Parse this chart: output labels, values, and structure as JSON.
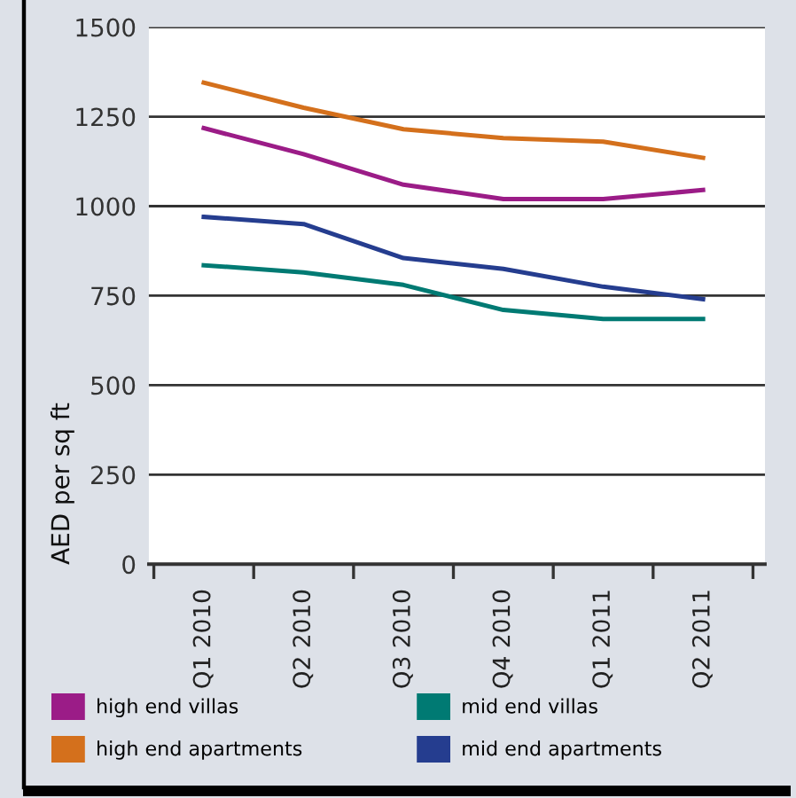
{
  "chart_data": {
    "type": "line",
    "ylabel": "AED per sq ft",
    "categories": [
      "Q1 2010",
      "Q2 2010",
      "Q3 2010",
      "Q4 2010",
      "Q1 2011",
      "Q2 2011"
    ],
    "series": [
      {
        "name": "high end villas",
        "color": "#9b1c87",
        "values": [
          1218,
          1145,
          1060,
          1020,
          1020,
          1045
        ]
      },
      {
        "name": "high end apartments",
        "color": "#d4701c",
        "values": [
          1345,
          1275,
          1215,
          1190,
          1180,
          1135
        ]
      },
      {
        "name": "mid end villas",
        "color": "#007a73",
        "values": [
          835,
          815,
          780,
          710,
          685,
          685
        ]
      },
      {
        "name": "mid end apartments",
        "color": "#253d8f",
        "values": [
          970,
          950,
          855,
          825,
          775,
          740
        ]
      }
    ],
    "ylim": [
      0,
      1500
    ],
    "yticks": [
      0,
      250,
      500,
      750,
      1000,
      1250,
      1500
    ],
    "grid": "y",
    "legend": "bottom",
    "marker": "none",
    "line_style": "solid"
  }
}
